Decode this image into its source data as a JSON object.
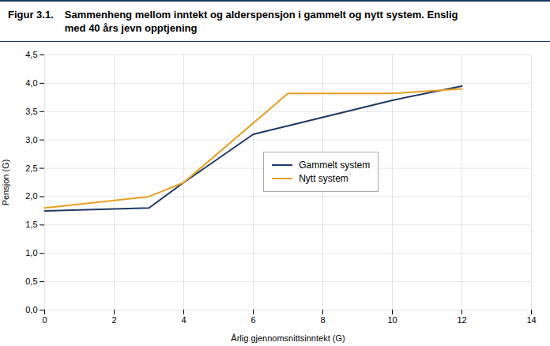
{
  "chart_data": {
    "type": "line",
    "title": "Figur 3.1.",
    "subtitle": "Sammenheng mellom inntekt og alderspensjon i gammelt og nytt system. Enslig\nmed 40 års jevn opptjening",
    "xlabel": "Årlig gjennomsnittsinntekt (G)",
    "ylabel": "Pensjon (G)",
    "xlim": [
      0,
      14
    ],
    "ylim": [
      0,
      4.5
    ],
    "xticks": [
      0,
      2,
      4,
      6,
      8,
      10,
      12,
      14
    ],
    "yticks": [
      {
        "value": 0.0,
        "label": "0,0"
      },
      {
        "value": 0.5,
        "label": "0,5"
      },
      {
        "value": 1.0,
        "label": "1,0"
      },
      {
        "value": 1.5,
        "label": "1,5"
      },
      {
        "value": 2.0,
        "label": "2,0"
      },
      {
        "value": 2.5,
        "label": "2,5"
      },
      {
        "value": 3.0,
        "label": "3,0"
      },
      {
        "value": 3.5,
        "label": "3,5"
      },
      {
        "value": 4.0,
        "label": "4,0"
      },
      {
        "value": 4.5,
        "label": "4,5"
      }
    ],
    "series": [
      {
        "name": "Gammelt system",
        "color": "#1F3864",
        "x": [
          0,
          3,
          4,
          6,
          8,
          10,
          12
        ],
        "values": [
          1.75,
          1.8,
          2.25,
          3.1,
          3.4,
          3.7,
          3.95
        ]
      },
      {
        "name": "Nytt system",
        "color": "#E8A020",
        "x": [
          0,
          3,
          4,
          7,
          8,
          10,
          12
        ],
        "values": [
          1.8,
          2.0,
          2.25,
          3.82,
          3.82,
          3.82,
          3.9
        ]
      }
    ],
    "grid": true,
    "legend": "center"
  }
}
